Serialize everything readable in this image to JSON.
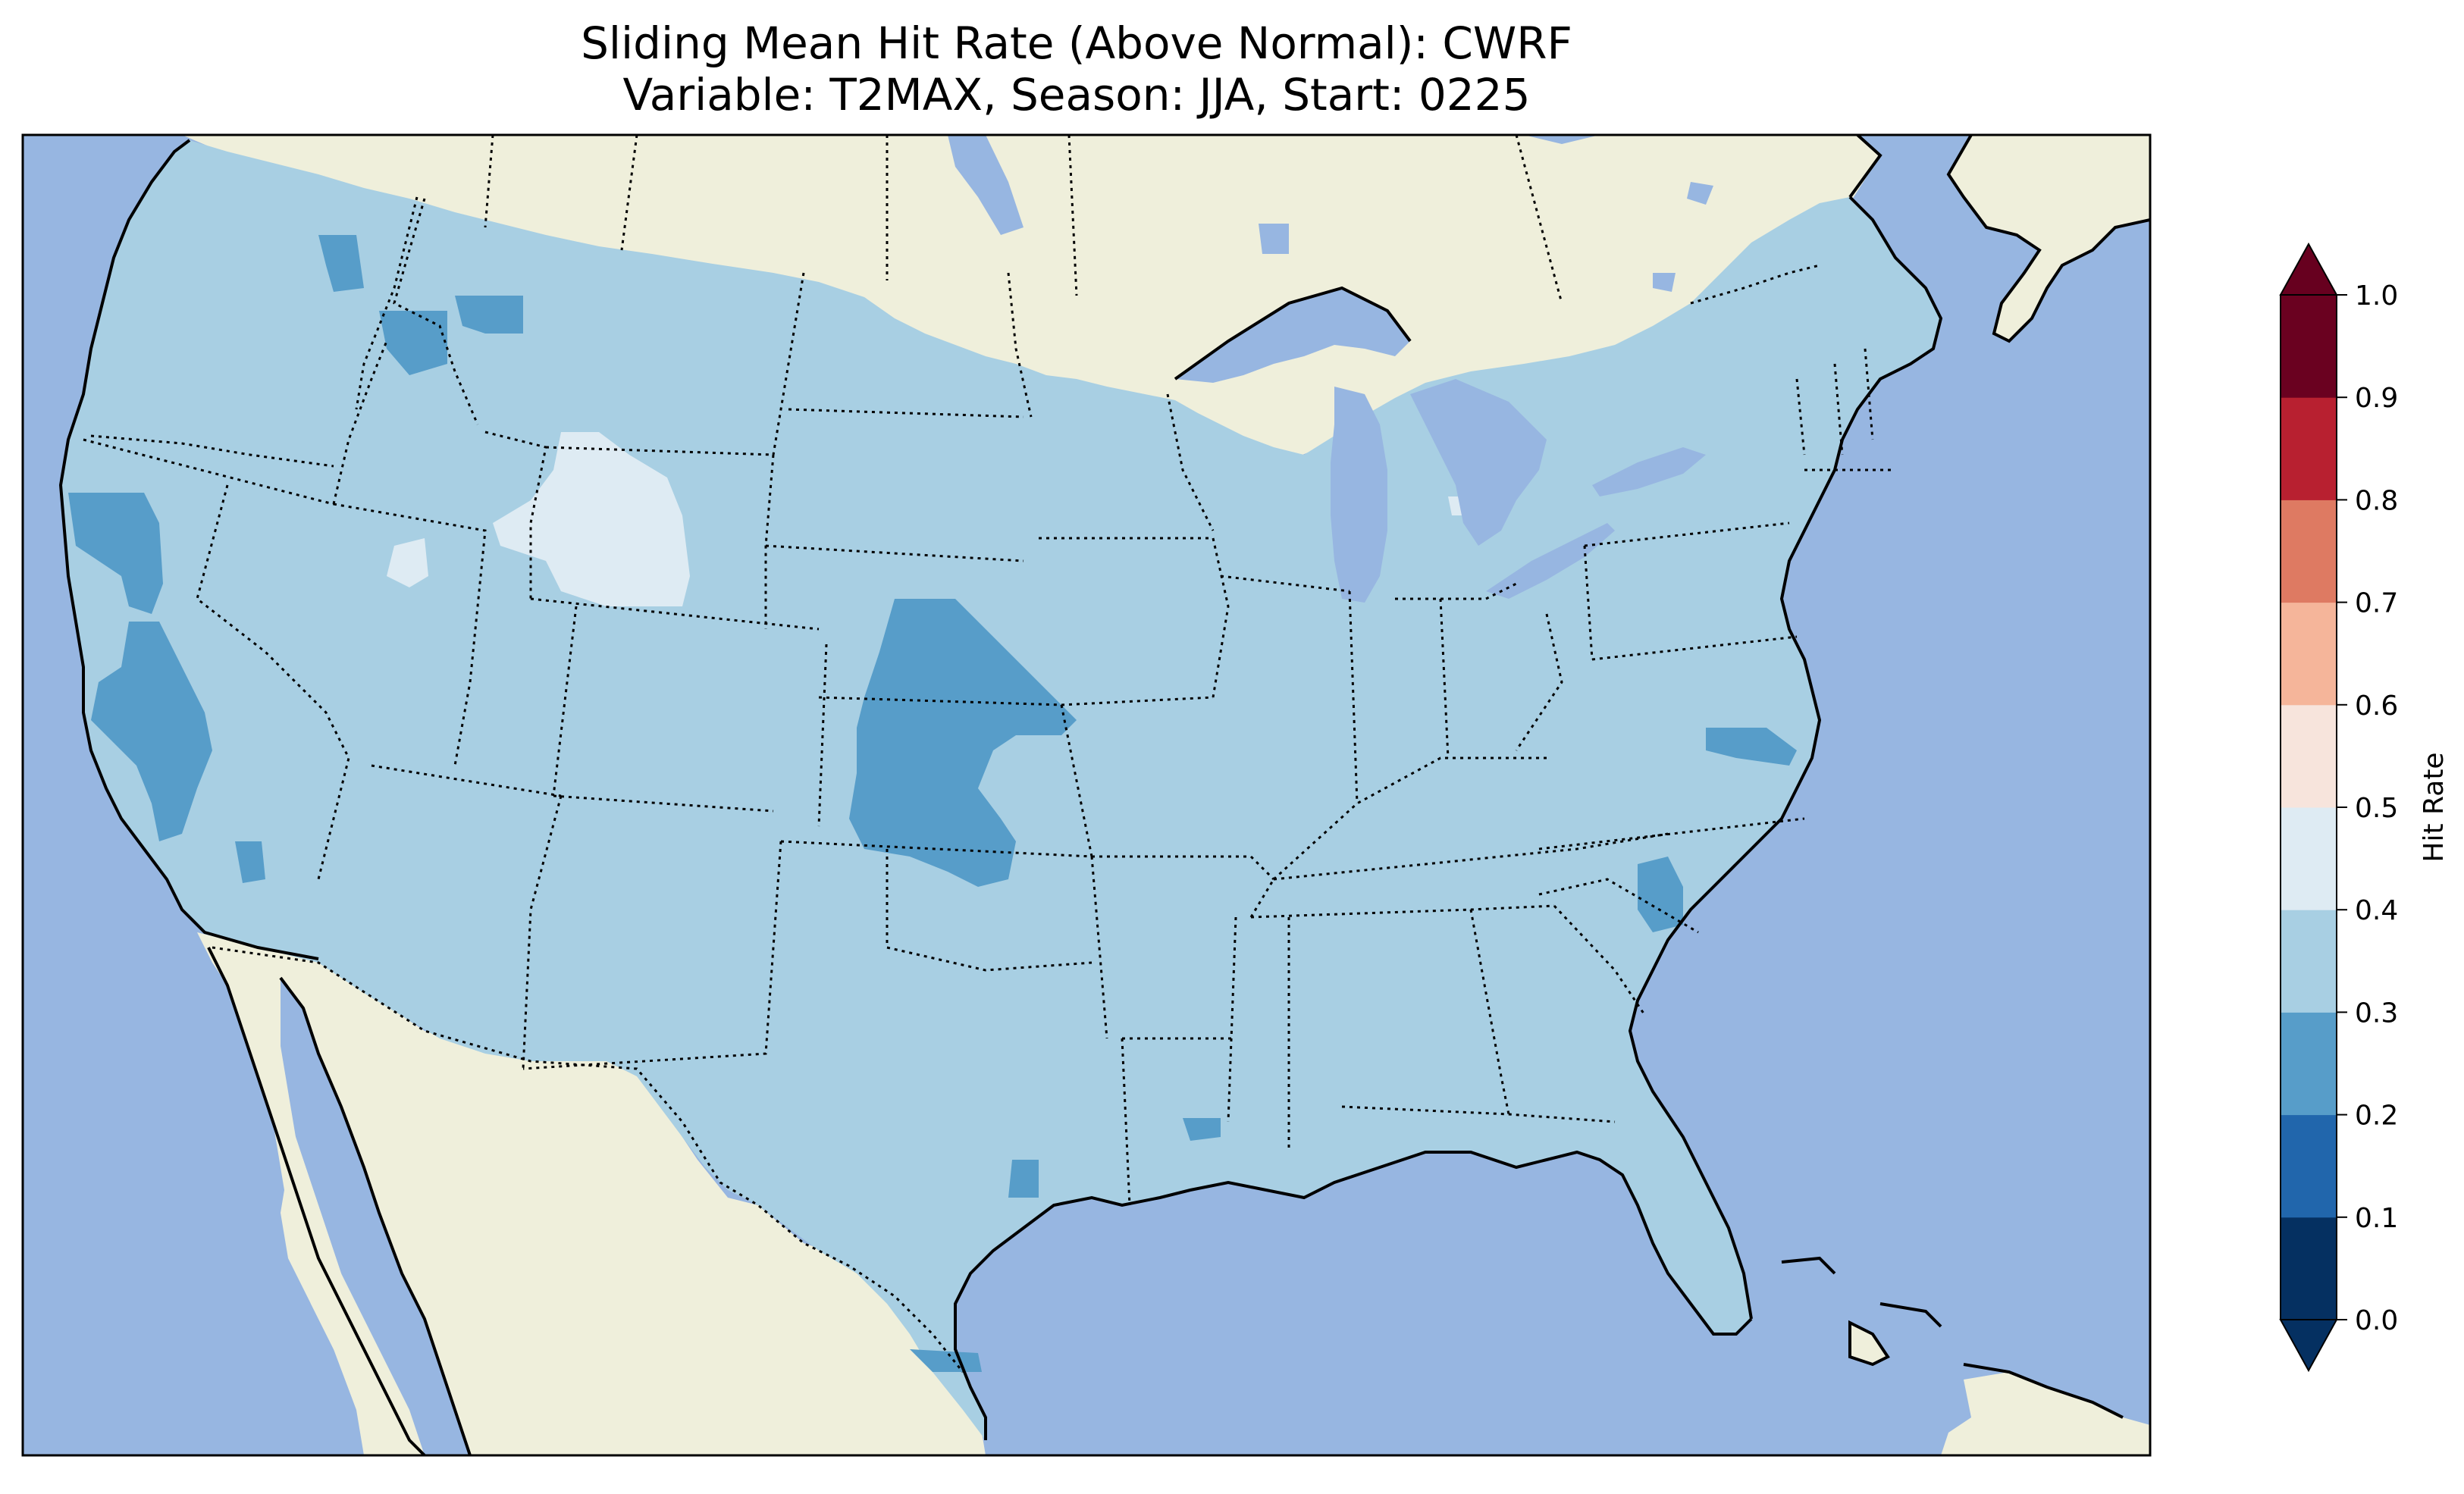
{
  "title": {
    "line1": "Sliding Mean Hit Rate (Above Normal): CWRF",
    "line2": "Variable: T2MAX, Season: JJA, Start: 0225"
  },
  "map": {
    "region": "Contiguous United States",
    "ocean_color": "#97b6e1",
    "land_color": "#efefdb",
    "lake_color": "#97b6e1",
    "hit_rate_field": {
      "background_bin": "0.3-0.4",
      "regions": [
        {
          "label": "Northern California coast",
          "bin": "0.2-0.3"
        },
        {
          "label": "Central California valley",
          "bin": "0.2-0.3"
        },
        {
          "label": "Southern California small patch",
          "bin": "0.2-0.3"
        },
        {
          "label": "Eastern Washington",
          "bin": "0.2-0.3"
        },
        {
          "label": "Northern Idaho",
          "bin": "0.2-0.3"
        },
        {
          "label": "Northwest Montana",
          "bin": "0.2-0.3"
        },
        {
          "label": "Wyoming / Idaho border",
          "bin": "0.4-0.5"
        },
        {
          "label": "Kansas / Nebraska",
          "bin": "0.2-0.3"
        },
        {
          "label": "Virginia coast",
          "bin": "0.2-0.3"
        },
        {
          "label": "South Carolina",
          "bin": "0.2-0.3"
        },
        {
          "label": "Louisiana",
          "bin": "0.2-0.3"
        },
        {
          "label": "South Texas",
          "bin": "0.2-0.3"
        },
        {
          "label": "Texas coast",
          "bin": "0.2-0.3"
        }
      ]
    }
  },
  "colorbar": {
    "label": "Hit Rate",
    "extend": "both",
    "ticks": [
      "0.0",
      "0.1",
      "0.2",
      "0.3",
      "0.4",
      "0.5",
      "0.6",
      "0.7",
      "0.8",
      "0.9",
      "1.0"
    ],
    "colors": [
      "#053061",
      "#2166ac",
      "#4393c3",
      "#92c5de",
      "#d1e5f0",
      "#f7f7f7",
      "#fddbc7",
      "#f4a582",
      "#d6604d",
      "#b2182b",
      "#67001f"
    ],
    "under_color": "#053061",
    "over_color": "#67001f",
    "bin_colors": {
      "0.0-0.1": "#053061",
      "0.1-0.2": "#2166ac",
      "0.2-0.3": "#579dc9",
      "0.3-0.4": "#a8cfe3",
      "0.4-0.5": "#deebf3",
      "0.5-0.6": "#f7e4dc",
      "0.6-0.7": "#f5b59a",
      "0.7-0.8": "#de7a62",
      "0.8-0.9": "#b82030",
      "0.9-1.0": "#6a0120"
    }
  }
}
